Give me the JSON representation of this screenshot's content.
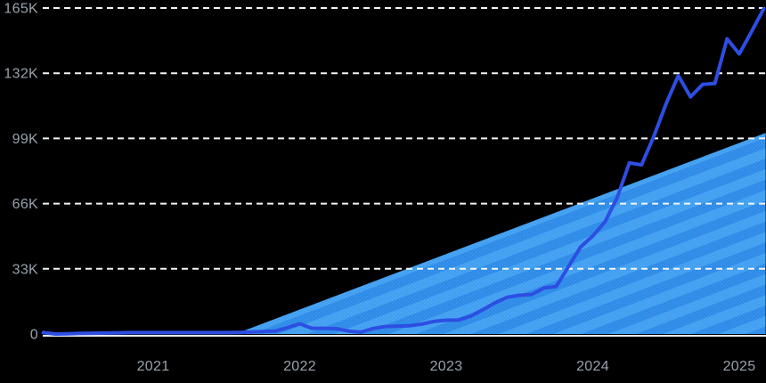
{
  "chart_data": {
    "type": "line",
    "title": "",
    "xlabel": "",
    "ylabel": "",
    "legend": "none",
    "grid": "horizontal-dashed",
    "ylim": [
      0,
      165000
    ],
    "xlim_years": [
      2020.22,
      2025.2
    ],
    "y_ticks": [
      {
        "value": 0,
        "label": "0"
      },
      {
        "value": 33000,
        "label": "33K"
      },
      {
        "value": 66000,
        "label": "66K"
      },
      {
        "value": 99000,
        "label": "99K"
      },
      {
        "value": 132000,
        "label": "132K"
      },
      {
        "value": 165000,
        "label": "165K"
      }
    ],
    "x_ticks": [
      {
        "year": 2021,
        "label": "2021"
      },
      {
        "year": 2022,
        "label": "2022"
      },
      {
        "year": 2023,
        "label": "2023"
      },
      {
        "year": 2024,
        "label": "2024"
      },
      {
        "year": 2025,
        "label": "2025"
      }
    ],
    "series": [
      {
        "name": "monthly-volume",
        "x_start_year": 2020.25,
        "x_step_months": 1,
        "values": [
          700,
          0,
          100,
          300,
          400,
          500,
          600,
          700,
          700,
          700,
          700,
          700,
          700,
          700,
          700,
          700,
          800,
          1000,
          1200,
          1500,
          3200,
          5200,
          2900,
          2900,
          2700,
          1500,
          900,
          2800,
          3800,
          4000,
          4200,
          5000,
          6400,
          7000,
          7100,
          9000,
          12300,
          15800,
          18600,
          19600,
          20000,
          23300,
          24000,
          34000,
          44000,
          49600,
          56700,
          69000,
          86600,
          85600,
          100000,
          116500,
          130800,
          120000,
          126300,
          126800,
          149400,
          141800,
          153000,
          164600
        ]
      }
    ],
    "trend_area": {
      "start_year": 2021.56,
      "start_value": 0,
      "end_year": 2025.18,
      "end_value": 101800
    }
  },
  "colors": {
    "background": "#000000",
    "line": "#2d4ee2",
    "area_base": "#2f8ce8",
    "area_stripe": "#43a0f1",
    "area_dot": "#ffffff",
    "grid": "#f3f6f9",
    "baseline": "#e6ebf1",
    "axis_label": "#9aa2ad"
  }
}
